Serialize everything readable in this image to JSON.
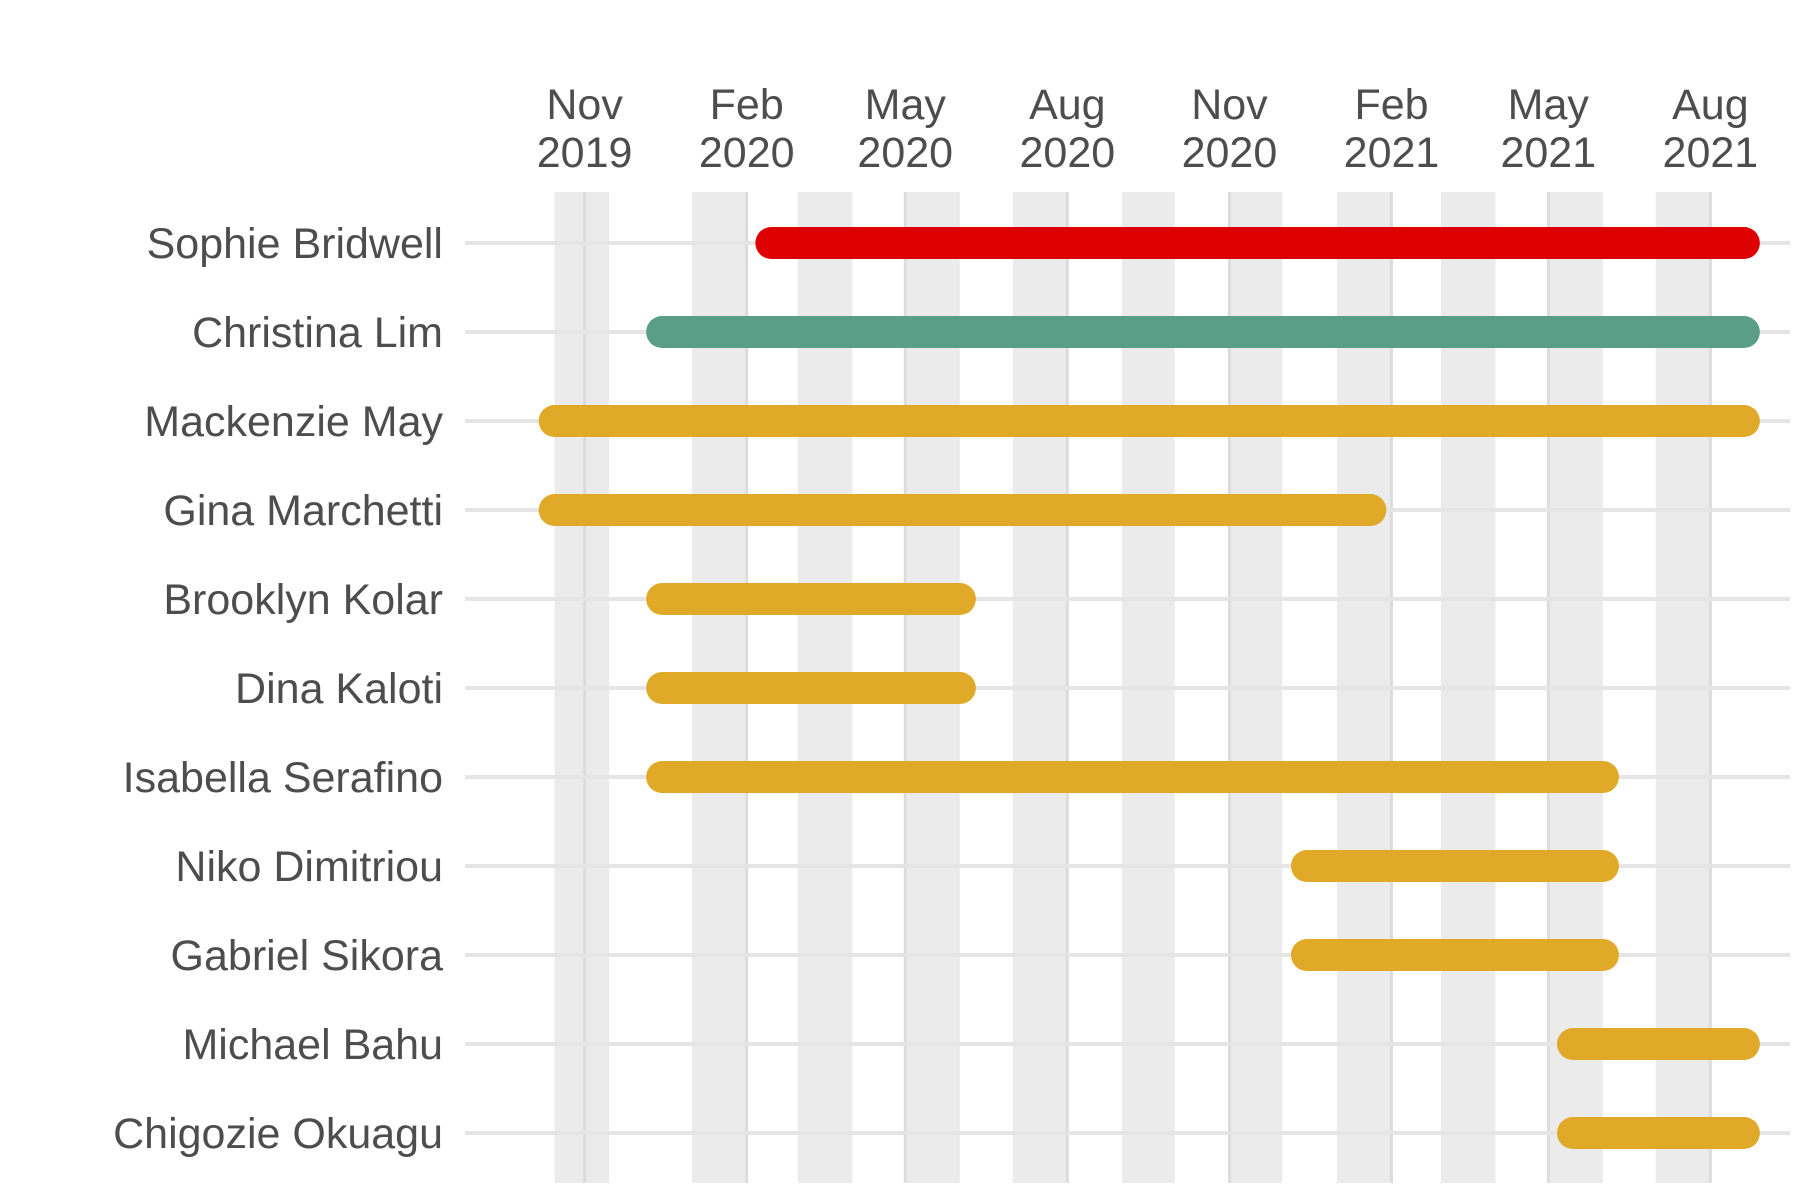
{
  "chart_data": {
    "type": "gantt",
    "title": "",
    "xlabel": "",
    "ylabel": "",
    "x_range": [
      "2019-10-01",
      "2021-09-01"
    ],
    "grid": true,
    "legend": "none",
    "x_ticks": [
      {
        "date": "2019-11-01",
        "line1": "Nov",
        "line2": "2019"
      },
      {
        "date": "2020-02-01",
        "line1": "Feb",
        "line2": "2020"
      },
      {
        "date": "2020-05-01",
        "line1": "May",
        "line2": "2020"
      },
      {
        "date": "2020-08-01",
        "line1": "Aug",
        "line2": "2020"
      },
      {
        "date": "2020-11-01",
        "line1": "Nov",
        "line2": "2020"
      },
      {
        "date": "2021-02-01",
        "line1": "Feb",
        "line2": "2021"
      },
      {
        "date": "2021-05-01",
        "line1": "May",
        "line2": "2021"
      },
      {
        "date": "2021-08-01",
        "line1": "Aug",
        "line2": "2021"
      }
    ],
    "month_shading": [
      [
        "2019-10-15",
        "2019-11-15"
      ],
      [
        "2020-01-01",
        "2020-02-01"
      ],
      [
        "2020-03-01",
        "2020-04-01"
      ],
      [
        "2020-05-01",
        "2020-06-01"
      ],
      [
        "2020-07-01",
        "2020-08-01"
      ],
      [
        "2020-09-01",
        "2020-10-01"
      ],
      [
        "2020-11-01",
        "2020-12-01"
      ],
      [
        "2021-01-01",
        "2021-02-01"
      ],
      [
        "2021-03-01",
        "2021-04-01"
      ],
      [
        "2021-05-01",
        "2021-06-01"
      ],
      [
        "2021-07-01",
        "2021-08-01"
      ]
    ],
    "colors": {
      "red": "#dd0000",
      "teal": "#5a9e88",
      "gold": "#e0aa28",
      "shading": "#ebebeb",
      "grid": "#e5e5e5",
      "text": "#4d4d4d"
    },
    "rows": [
      {
        "name": "Sophie Bridwell",
        "start": "2020-02-15",
        "end": "2021-08-20",
        "color": "#dd0000"
      },
      {
        "name": "Christina Lim",
        "start": "2019-12-15",
        "end": "2021-08-20",
        "color": "#5a9e88"
      },
      {
        "name": "Mackenzie May",
        "start": "2019-10-15",
        "end": "2021-08-20",
        "color": "#e0aa28"
      },
      {
        "name": "Gina Marchetti",
        "start": "2019-10-15",
        "end": "2021-01-20",
        "color": "#e0aa28"
      },
      {
        "name": "Brooklyn Kolar",
        "start": "2019-12-15",
        "end": "2020-06-01",
        "color": "#e0aa28"
      },
      {
        "name": "Dina Kaloti",
        "start": "2019-12-15",
        "end": "2020-06-01",
        "color": "#e0aa28"
      },
      {
        "name": "Isabella Serafino",
        "start": "2019-12-15",
        "end": "2021-06-01",
        "color": "#e0aa28"
      },
      {
        "name": "Niko Dimitriou",
        "start": "2020-12-15",
        "end": "2021-06-01",
        "color": "#e0aa28"
      },
      {
        "name": "Gabriel Sikora",
        "start": "2020-12-15",
        "end": "2021-06-01",
        "color": "#e0aa28"
      },
      {
        "name": "Michael Bahu",
        "start": "2021-05-15",
        "end": "2021-08-20",
        "color": "#e0aa28"
      },
      {
        "name": "Chigozie Okuagu",
        "start": "2021-05-15",
        "end": "2021-08-20",
        "color": "#e0aa28"
      }
    ]
  }
}
